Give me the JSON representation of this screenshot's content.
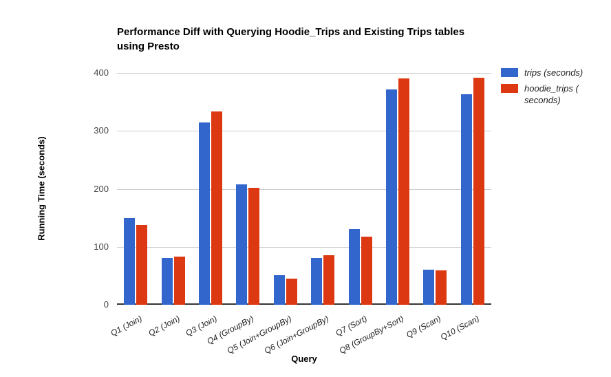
{
  "title": "Performance Diff with Querying Hoodie_Trips and Existing Trips tables\nusing Presto",
  "axes": {
    "x_title": "Query",
    "y_title": "Running Time (seconds)"
  },
  "colors": {
    "series_trips": "#3366CC",
    "series_hoodie_trips": "#DC3912",
    "gridline": "#cccccc",
    "axis_baseline": "#333333",
    "tick_label": "#444444",
    "category_label": "#222222"
  },
  "chart_data": {
    "type": "bar",
    "title": "Performance Diff with Querying Hoodie_Trips and Existing Trips tables using Presto",
    "xlabel": "Query",
    "ylabel": "Running Time (seconds)",
    "categories": [
      "Q1 (Join)",
      "Q2 (Join)",
      "Q3 (Join)",
      "Q4 (GroupBy)",
      "Q5 (Join+GroupBy)",
      "Q6 (Join+GroupBy)",
      "Q7 (Sort)",
      "Q8 (GroupBy+Sort)",
      "Q9 (Scan)",
      "Q10 (Scan)"
    ],
    "series": [
      {
        "name": "trips (seconds)",
        "color": "#3366CC",
        "values": [
          150,
          81,
          314,
          208,
          51,
          81,
          131,
          371,
          60,
          363
        ]
      },
      {
        "name": "hoodie_trips (\nseconds)",
        "color": "#DC3912",
        "values": [
          138,
          83,
          333,
          202,
          45,
          85,
          117,
          390,
          59,
          392
        ]
      }
    ],
    "ylim": [
      0,
      400
    ],
    "yticks": [
      0,
      100,
      200,
      300,
      400
    ],
    "grid": true,
    "legend_position": "right"
  }
}
